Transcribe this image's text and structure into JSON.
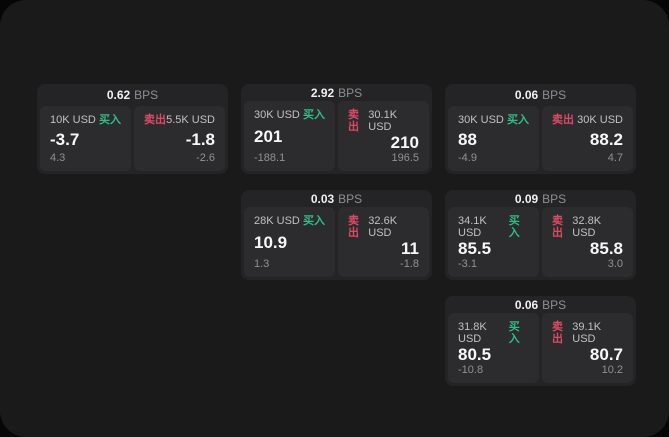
{
  "labels": {
    "buy": "买入",
    "sell": "卖出",
    "bps_suffix": "BPS"
  },
  "colors": {
    "buy": "#2ebd85",
    "sell": "#dd4a62",
    "panel": "#1a1a1b",
    "card": "#242426",
    "pane": "#2c2c2e"
  },
  "cards": [
    {
      "bps": "0.62",
      "col": 1,
      "row": 1,
      "buy": {
        "size": "10K USD",
        "value": "-3.7",
        "sub": "4.3"
      },
      "sell": {
        "size": "5.5K USD",
        "value": "-1.8",
        "sub": "-2.6"
      }
    },
    {
      "bps": "2.92",
      "col": 2,
      "row": 1,
      "buy": {
        "size": "30K USD",
        "value": "201",
        "sub": "-188.1"
      },
      "sell": {
        "size": "30.1K USD",
        "value": "210",
        "sub": "196.5"
      }
    },
    {
      "bps": "0.06",
      "col": 3,
      "row": 1,
      "buy": {
        "size": "30K USD",
        "value": "88",
        "sub": "-4.9"
      },
      "sell": {
        "size": "30K USD",
        "value": "88.2",
        "sub": "4.7"
      }
    },
    {
      "bps": "0.03",
      "col": 2,
      "row": 2,
      "buy": {
        "size": "28K USD",
        "value": "10.9",
        "sub": "1.3"
      },
      "sell": {
        "size": "32.6K USD",
        "value": "11",
        "sub": "-1.8"
      }
    },
    {
      "bps": "0.09",
      "col": 3,
      "row": 2,
      "buy": {
        "size": "34.1K USD",
        "value": "85.5",
        "sub": "-3.1"
      },
      "sell": {
        "size": "32.8K USD",
        "value": "85.8",
        "sub": "3.0"
      }
    },
    {
      "bps": "0.06",
      "col": 3,
      "row": 3,
      "buy": {
        "size": "31.8K USD",
        "value": "80.5",
        "sub": "-10.8"
      },
      "sell": {
        "size": "39.1K USD",
        "value": "80.7",
        "sub": "10.2"
      }
    }
  ]
}
